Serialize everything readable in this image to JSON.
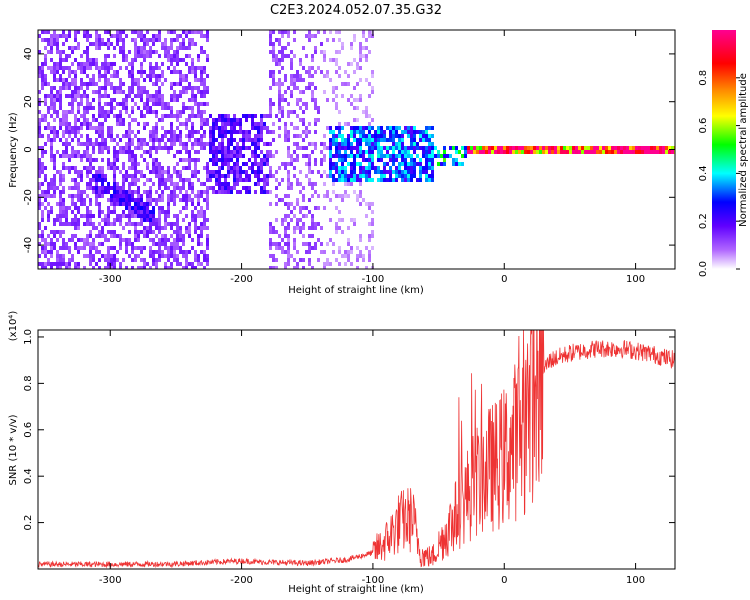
{
  "chart_data": [
    {
      "type": "heatmap",
      "title": "C2E3.2024.052.07.35.G32",
      "xlabel": "Height of straight line (km)",
      "ylabel": "Frequency (Hz)",
      "xlim": [
        -355,
        130
      ],
      "ylim": [
        -50,
        50
      ],
      "xticks": [
        -300,
        -200,
        -100,
        0,
        100
      ],
      "yticks": [
        -40,
        -20,
        0,
        20,
        40
      ],
      "colorbar": {
        "label": "Normalized spectral amplitude",
        "range": [
          0,
          1
        ],
        "ticks": [
          "0.0",
          "0.2",
          "0.4",
          "0.6",
          "0.8"
        ],
        "colors": [
          "#e6ccff",
          "#8a00ff",
          "#0000ff",
          "#00ffff",
          "#00ff00",
          "#ffff00",
          "#ff8800",
          "#ff0000",
          "#ff00aa"
        ]
      },
      "regions": [
        {
          "x": [
            -355,
            -225
          ],
          "y": [
            -50,
            50
          ],
          "amplitude": 0.12,
          "density": 0.55
        },
        {
          "x": [
            -225,
            -180
          ],
          "y": [
            -18,
            15
          ],
          "amplitude": 0.18,
          "density": 0.7
        },
        {
          "x": [
            -180,
            -140
          ],
          "y": [
            -50,
            50
          ],
          "amplitude": 0.1,
          "density": 0.35
        },
        {
          "x": [
            -140,
            -100
          ],
          "y": [
            -50,
            50
          ],
          "amplitude": 0.06,
          "density": 0.25
        },
        {
          "x": [
            -135,
            -55
          ],
          "y": [
            -12,
            10
          ],
          "amplitude": 0.3,
          "density": 0.75
        },
        {
          "x": [
            -55,
            -30
          ],
          "y": [
            -6,
            3
          ],
          "amplitude": 0.4,
          "density": 0.6
        },
        {
          "x": [
            -30,
            130
          ],
          "y": [
            -1.5,
            1.5
          ],
          "amplitude": 0.88,
          "density": 1.0
        }
      ],
      "diagonal_feature": {
        "x": [
          -315,
          -265
        ],
        "y": [
          -12,
          -28
        ]
      }
    },
    {
      "type": "line",
      "xlabel": "Height of straight line (km)",
      "ylabel": "SNR (10 * v/v)",
      "y_multiplier": "(x10⁴)",
      "xlim": [
        -355,
        130
      ],
      "ylim": [
        0,
        1.03
      ],
      "xticks": [
        -300,
        -200,
        -100,
        0,
        100
      ],
      "yticks": [
        0.2,
        0.4,
        0.6,
        0.8,
        1.0
      ],
      "color": "#ee3333",
      "series_points": [
        {
          "x": -355,
          "y": 0.02
        },
        {
          "x": -300,
          "y": 0.02
        },
        {
          "x": -250,
          "y": 0.022
        },
        {
          "x": -200,
          "y": 0.035
        },
        {
          "x": -185,
          "y": 0.03
        },
        {
          "x": -150,
          "y": 0.025
        },
        {
          "x": -120,
          "y": 0.04
        },
        {
          "x": -100,
          "y": 0.07
        },
        {
          "x": -90,
          "y": 0.12
        },
        {
          "x": -80,
          "y": 0.2
        },
        {
          "x": -70,
          "y": 0.22
        },
        {
          "x": -63,
          "y": 0.06
        },
        {
          "x": -55,
          "y": 0.05
        },
        {
          "x": -45,
          "y": 0.15
        },
        {
          "x": -35,
          "y": 0.25
        },
        {
          "x": -25,
          "y": 0.35
        },
        {
          "x": -15,
          "y": 0.42
        },
        {
          "x": -5,
          "y": 0.45
        },
        {
          "x": 5,
          "y": 0.52
        },
        {
          "x": 15,
          "y": 0.62
        },
        {
          "x": 25,
          "y": 0.82
        },
        {
          "x": 35,
          "y": 0.9
        },
        {
          "x": 50,
          "y": 0.93
        },
        {
          "x": 70,
          "y": 0.95
        },
        {
          "x": 90,
          "y": 0.95
        },
        {
          "x": 110,
          "y": 0.93
        },
        {
          "x": 130,
          "y": 0.9
        }
      ]
    }
  ]
}
